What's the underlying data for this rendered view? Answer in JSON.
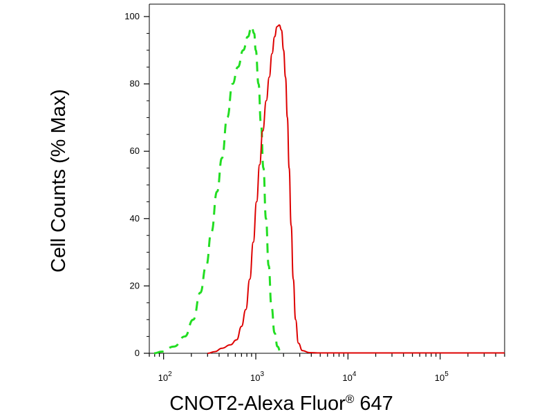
{
  "chart_data": {
    "type": "line",
    "title": "",
    "xlabel": "CNOT2-Alexa Fluor® 647",
    "ylabel": "Cell Counts (% Max)",
    "x_scale": "log",
    "xlim": [
      70,
      500000
    ],
    "ylim": [
      0,
      100
    ],
    "x_ticks": [
      {
        "value": 100,
        "base": "10",
        "exp": "2"
      },
      {
        "value": 1000,
        "base": "10",
        "exp": "3"
      },
      {
        "value": 10000,
        "base": "10",
        "exp": "4"
      },
      {
        "value": 100000,
        "base": "10",
        "exp": "5"
      }
    ],
    "y_ticks": [
      0,
      20,
      40,
      60,
      80,
      100
    ],
    "grid": false,
    "series": [
      {
        "color": "#22dd22",
        "style": "dashed",
        "points": [
          [
            79,
            0
          ],
          [
            95,
            0.5
          ],
          [
            130,
            2
          ],
          [
            170,
            5
          ],
          [
            210,
            10
          ],
          [
            250,
            18
          ],
          [
            290,
            26
          ],
          [
            330,
            36
          ],
          [
            380,
            48
          ],
          [
            430,
            58
          ],
          [
            490,
            70
          ],
          [
            560,
            80
          ],
          [
            640,
            85
          ],
          [
            730,
            90
          ],
          [
            820,
            94
          ],
          [
            900,
            97
          ],
          [
            960,
            95
          ],
          [
            1000,
            90
          ],
          [
            1070,
            80
          ],
          [
            1140,
            68
          ],
          [
            1210,
            55
          ],
          [
            1290,
            40
          ],
          [
            1380,
            26
          ],
          [
            1480,
            14
          ],
          [
            1600,
            6
          ],
          [
            1720,
            2
          ],
          [
            1850,
            0.5
          ],
          [
            2000,
            0
          ]
        ]
      },
      {
        "color": "#dd0000",
        "style": "solid",
        "points": [
          [
            300,
            0
          ],
          [
            360,
            0.5
          ],
          [
            430,
            1.5
          ],
          [
            530,
            2.5
          ],
          [
            620,
            4
          ],
          [
            700,
            8
          ],
          [
            780,
            13
          ],
          [
            860,
            22
          ],
          [
            940,
            33
          ],
          [
            1020,
            45
          ],
          [
            1100,
            56
          ],
          [
            1190,
            66
          ],
          [
            1300,
            75
          ],
          [
            1400,
            82
          ],
          [
            1500,
            89
          ],
          [
            1600,
            94
          ],
          [
            1700,
            97
          ],
          [
            1800,
            97.5
          ],
          [
            1900,
            96
          ],
          [
            2000,
            90
          ],
          [
            2100,
            82
          ],
          [
            2200,
            70
          ],
          [
            2300,
            55
          ],
          [
            2420,
            38
          ],
          [
            2550,
            22
          ],
          [
            2700,
            10
          ],
          [
            2900,
            3
          ],
          [
            3200,
            0.8
          ],
          [
            3800,
            0.2
          ],
          [
            5000,
            0.1
          ],
          [
            20000,
            0.1
          ],
          [
            100000,
            0.1
          ],
          [
            500000,
            0.1
          ]
        ]
      }
    ]
  }
}
